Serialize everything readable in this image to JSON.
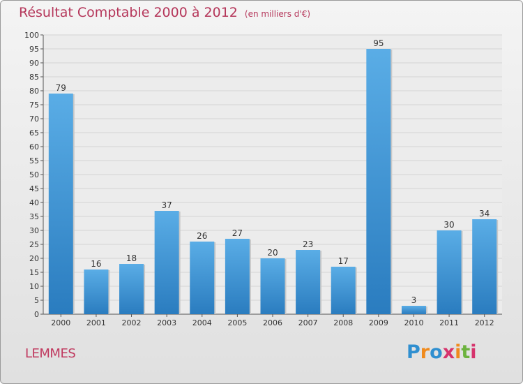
{
  "chart_data": {
    "type": "bar",
    "title": "Résultat Comptable 2000 à 2012",
    "subtitle": "(en milliers d'€)",
    "categories": [
      "2000",
      "2001",
      "2002",
      "2003",
      "2004",
      "2005",
      "2006",
      "2007",
      "2008",
      "2009",
      "2010",
      "2011",
      "2012"
    ],
    "values": [
      79,
      16,
      18,
      37,
      26,
      27,
      20,
      23,
      17,
      95,
      3,
      30,
      34
    ],
    "ylim": [
      0,
      100
    ],
    "ytick_step": 5,
    "grid": true,
    "bar_color_top": "#5aade6",
    "bar_color_bottom": "#2a7cbf",
    "xlabel": "",
    "ylabel": ""
  },
  "footer": {
    "commune": "LEMMES",
    "logo_letters": [
      "P",
      "r",
      "o",
      "x",
      "i",
      "t",
      "i"
    ],
    "logo_colors": [
      "#2f8fd0",
      "#f08a1c",
      "#2f8fd0",
      "#d6336c",
      "#f08a1c",
      "#6cb33e",
      "#d6336c"
    ]
  }
}
